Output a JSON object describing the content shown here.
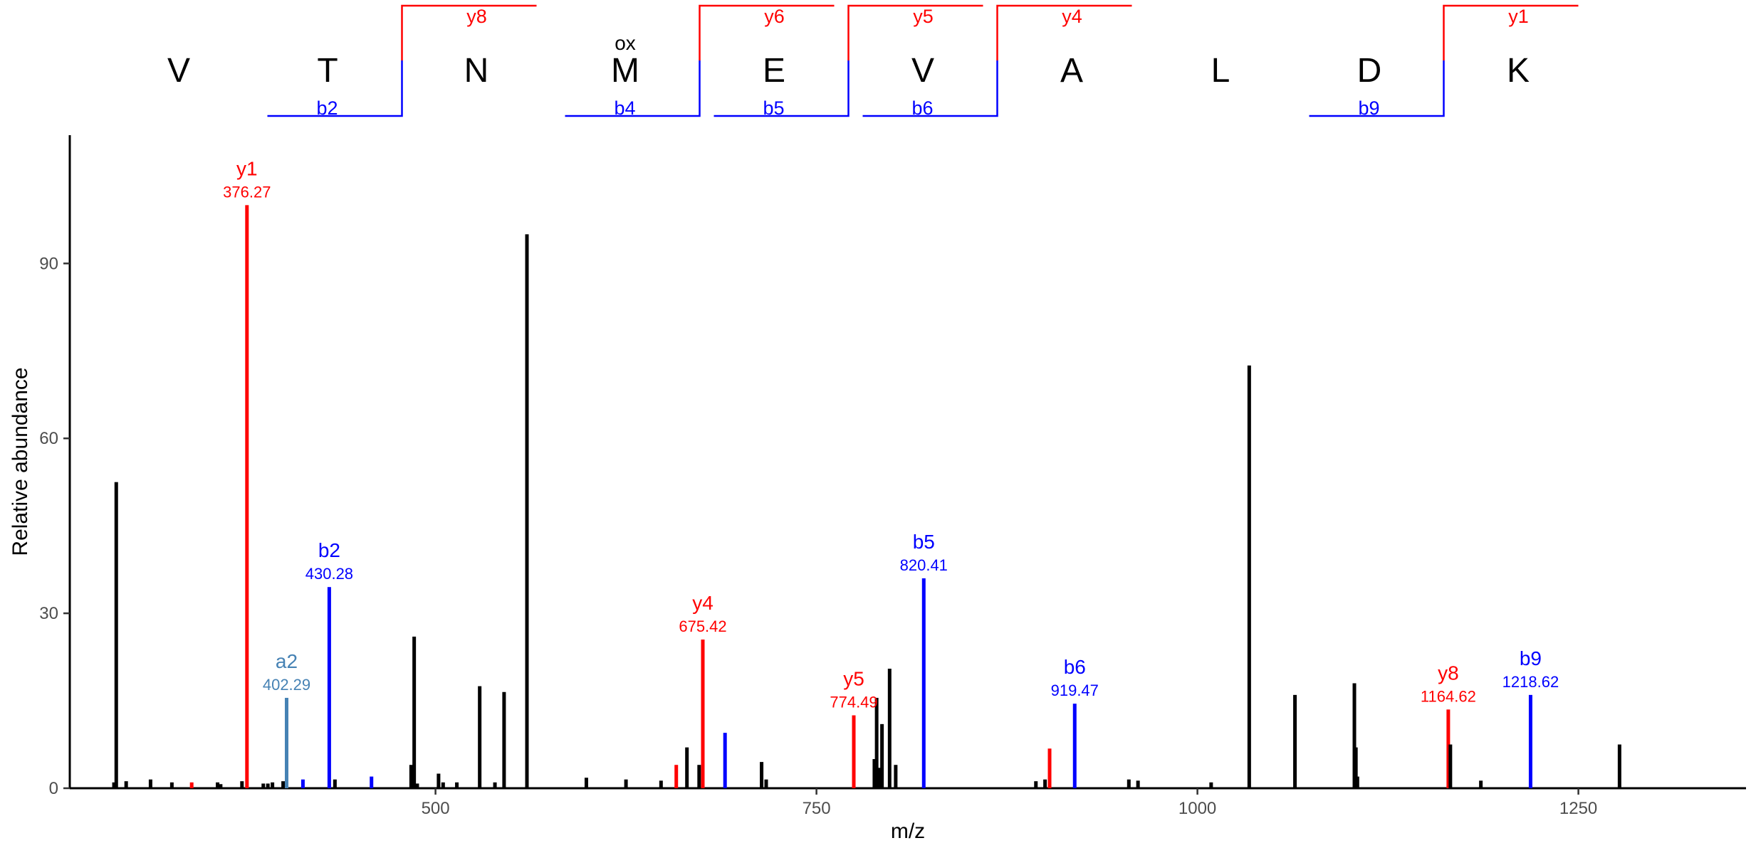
{
  "chart_data": {
    "type": "bar",
    "xlabel": "m/z",
    "ylabel": "Relative abundance",
    "xlim": [
      260,
      1360
    ],
    "ylim": [
      0,
      112
    ],
    "x_ticks": [
      500,
      750,
      1000,
      1250
    ],
    "y_ticks": [
      0,
      30,
      60,
      90
    ],
    "grid": false,
    "colors": {
      "b": "#0000ff",
      "y": "#ff0000",
      "a": "#4682b4",
      "unassigned": "#000000"
    },
    "peptide": {
      "residues": [
        "V",
        "T",
        "N",
        "M",
        "E",
        "V",
        "A",
        "L",
        "D",
        "K"
      ],
      "modifications": [
        {
          "residue_index": 3,
          "label": "ox"
        }
      ],
      "y_fragments": [
        {
          "label": "y8",
          "after_residue": 2
        },
        {
          "label": "y6",
          "after_residue": 4
        },
        {
          "label": "y5",
          "after_residue": 5
        },
        {
          "label": "y4",
          "after_residue": 6
        },
        {
          "label": "y1",
          "after_residue": 9
        }
      ],
      "b_fragments": [
        {
          "label": "b2",
          "after_residue": 2
        },
        {
          "label": "b4",
          "after_residue": 4
        },
        {
          "label": "b5",
          "after_residue": 5
        },
        {
          "label": "b6",
          "after_residue": 6
        },
        {
          "label": "b9",
          "after_residue": 9
        }
      ]
    },
    "peaks": [
      {
        "mz": 289.0,
        "intensity": 1.0,
        "type": "unassigned"
      },
      {
        "mz": 290.5,
        "intensity": 52.5,
        "type": "unassigned"
      },
      {
        "mz": 297.0,
        "intensity": 1.2,
        "type": "unassigned"
      },
      {
        "mz": 313.0,
        "intensity": 1.5,
        "type": "unassigned"
      },
      {
        "mz": 327.0,
        "intensity": 1.0,
        "type": "unassigned"
      },
      {
        "mz": 340.0,
        "intensity": 1.0,
        "type": "y"
      },
      {
        "mz": 357.0,
        "intensity": 1.0,
        "type": "unassigned"
      },
      {
        "mz": 359.0,
        "intensity": 0.7,
        "type": "unassigned"
      },
      {
        "mz": 373.0,
        "intensity": 1.2,
        "type": "unassigned"
      },
      {
        "mz": 376.27,
        "intensity": 100.0,
        "type": "y",
        "label": "y1",
        "mz_label": "376.27"
      },
      {
        "mz": 387.0,
        "intensity": 0.8,
        "type": "unassigned"
      },
      {
        "mz": 390.0,
        "intensity": 0.8,
        "type": "unassigned"
      },
      {
        "mz": 393.0,
        "intensity": 1.0,
        "type": "unassigned"
      },
      {
        "mz": 400.0,
        "intensity": 1.2,
        "type": "unassigned"
      },
      {
        "mz": 402.29,
        "intensity": 15.5,
        "type": "a",
        "label": "a2",
        "mz_label": "402.29"
      },
      {
        "mz": 413.0,
        "intensity": 1.5,
        "type": "b"
      },
      {
        "mz": 430.28,
        "intensity": 34.5,
        "type": "b",
        "label": "b2",
        "mz_label": "430.28"
      },
      {
        "mz": 434.0,
        "intensity": 1.5,
        "type": "unassigned"
      },
      {
        "mz": 458.0,
        "intensity": 2.0,
        "type": "b"
      },
      {
        "mz": 484.0,
        "intensity": 4.0,
        "type": "unassigned"
      },
      {
        "mz": 486.0,
        "intensity": 26.0,
        "type": "unassigned"
      },
      {
        "mz": 488.0,
        "intensity": 0.8,
        "type": "unassigned"
      },
      {
        "mz": 502.0,
        "intensity": 2.5,
        "type": "unassigned"
      },
      {
        "mz": 505.0,
        "intensity": 1.0,
        "type": "unassigned"
      },
      {
        "mz": 514.0,
        "intensity": 1.0,
        "type": "unassigned"
      },
      {
        "mz": 529.0,
        "intensity": 17.5,
        "type": "unassigned"
      },
      {
        "mz": 539.0,
        "intensity": 1.0,
        "type": "unassigned"
      },
      {
        "mz": 545.0,
        "intensity": 16.5,
        "type": "unassigned"
      },
      {
        "mz": 560.0,
        "intensity": 95.0,
        "type": "unassigned"
      },
      {
        "mz": 599.0,
        "intensity": 1.8,
        "type": "unassigned"
      },
      {
        "mz": 625.0,
        "intensity": 1.5,
        "type": "unassigned"
      },
      {
        "mz": 648.0,
        "intensity": 1.3,
        "type": "unassigned"
      },
      {
        "mz": 658.0,
        "intensity": 4.0,
        "type": "y"
      },
      {
        "mz": 665.0,
        "intensity": 7.0,
        "type": "unassigned"
      },
      {
        "mz": 673.0,
        "intensity": 4.0,
        "type": "unassigned"
      },
      {
        "mz": 675.42,
        "intensity": 25.5,
        "type": "y",
        "label": "y4",
        "mz_label": "675.42"
      },
      {
        "mz": 690.0,
        "intensity": 9.5,
        "type": "b"
      },
      {
        "mz": 714.0,
        "intensity": 4.5,
        "type": "unassigned"
      },
      {
        "mz": 717.0,
        "intensity": 1.5,
        "type": "unassigned"
      },
      {
        "mz": 774.49,
        "intensity": 12.5,
        "type": "y",
        "label": "y5",
        "mz_label": "774.49"
      },
      {
        "mz": 788.0,
        "intensity": 5.0,
        "type": "unassigned"
      },
      {
        "mz": 789.5,
        "intensity": 15.5,
        "type": "unassigned"
      },
      {
        "mz": 791.0,
        "intensity": 3.5,
        "type": "unassigned"
      },
      {
        "mz": 793.0,
        "intensity": 11.0,
        "type": "unassigned"
      },
      {
        "mz": 798.0,
        "intensity": 20.5,
        "type": "unassigned"
      },
      {
        "mz": 802.0,
        "intensity": 4.0,
        "type": "unassigned"
      },
      {
        "mz": 820.41,
        "intensity": 36.0,
        "type": "b",
        "label": "b5",
        "mz_label": "820.41"
      },
      {
        "mz": 894.0,
        "intensity": 1.2,
        "type": "unassigned"
      },
      {
        "mz": 900.0,
        "intensity": 1.5,
        "type": "unassigned"
      },
      {
        "mz": 903.0,
        "intensity": 6.8,
        "type": "y"
      },
      {
        "mz": 919.47,
        "intensity": 14.5,
        "type": "b",
        "label": "b6",
        "mz_label": "919.47"
      },
      {
        "mz": 955.0,
        "intensity": 1.5,
        "type": "unassigned"
      },
      {
        "mz": 961.0,
        "intensity": 1.3,
        "type": "unassigned"
      },
      {
        "mz": 1009.0,
        "intensity": 1.0,
        "type": "unassigned"
      },
      {
        "mz": 1034.0,
        "intensity": 72.5,
        "type": "unassigned"
      },
      {
        "mz": 1064.0,
        "intensity": 16.0,
        "type": "unassigned"
      },
      {
        "mz": 1103.0,
        "intensity": 18.0,
        "type": "unassigned"
      },
      {
        "mz": 1104.0,
        "intensity": 7.0,
        "type": "unassigned"
      },
      {
        "mz": 1105.0,
        "intensity": 2.0,
        "type": "unassigned"
      },
      {
        "mz": 1164.62,
        "intensity": 13.5,
        "type": "y",
        "label": "y8",
        "mz_label": "1164.62"
      },
      {
        "mz": 1166.0,
        "intensity": 7.5,
        "type": "unassigned"
      },
      {
        "mz": 1186.0,
        "intensity": 1.3,
        "type": "unassigned"
      },
      {
        "mz": 1218.62,
        "intensity": 16.0,
        "type": "b",
        "label": "b9",
        "mz_label": "1218.62"
      },
      {
        "mz": 1277.0,
        "intensity": 7.5,
        "type": "unassigned"
      }
    ]
  }
}
